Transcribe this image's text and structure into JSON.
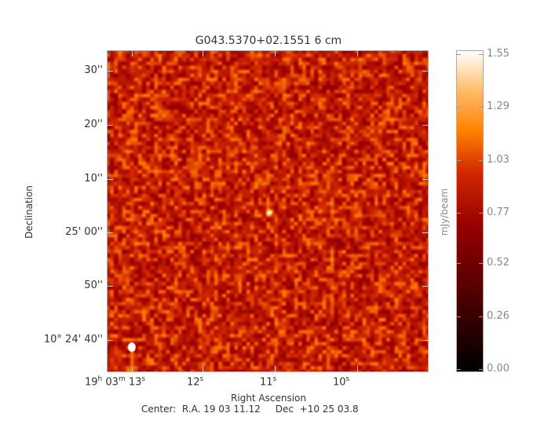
{
  "chart_data": {
    "type": "heatmap",
    "title": "G043.5370+02.1551 6 cm",
    "xlabel": "Right Ascension",
    "ylabel": "Declination",
    "colorbar_label": "mJy/beam",
    "colorbar_ticks": [
      "0.00",
      "0.26",
      "0.52",
      "0.77",
      "1.03",
      "1.29",
      "1.55"
    ],
    "color_range": [
      0.0,
      1.55
    ],
    "colormap": "black-red-orange-white",
    "x_ticks": [
      {
        "h": "19",
        "m": "03",
        "s": "13"
      },
      {
        "s": "12"
      },
      {
        "s": "11"
      },
      {
        "s": "10"
      }
    ],
    "y_ticks": [
      "30''",
      "20''",
      "10''",
      "25' 00''",
      "50''",
      "10° 24' 40''"
    ],
    "footer": "Center:  R.A. 19 03 11.12     Dec  +10 25 03.8",
    "beam_color": "#ffffff",
    "frame_color": "#aaaaaa"
  }
}
